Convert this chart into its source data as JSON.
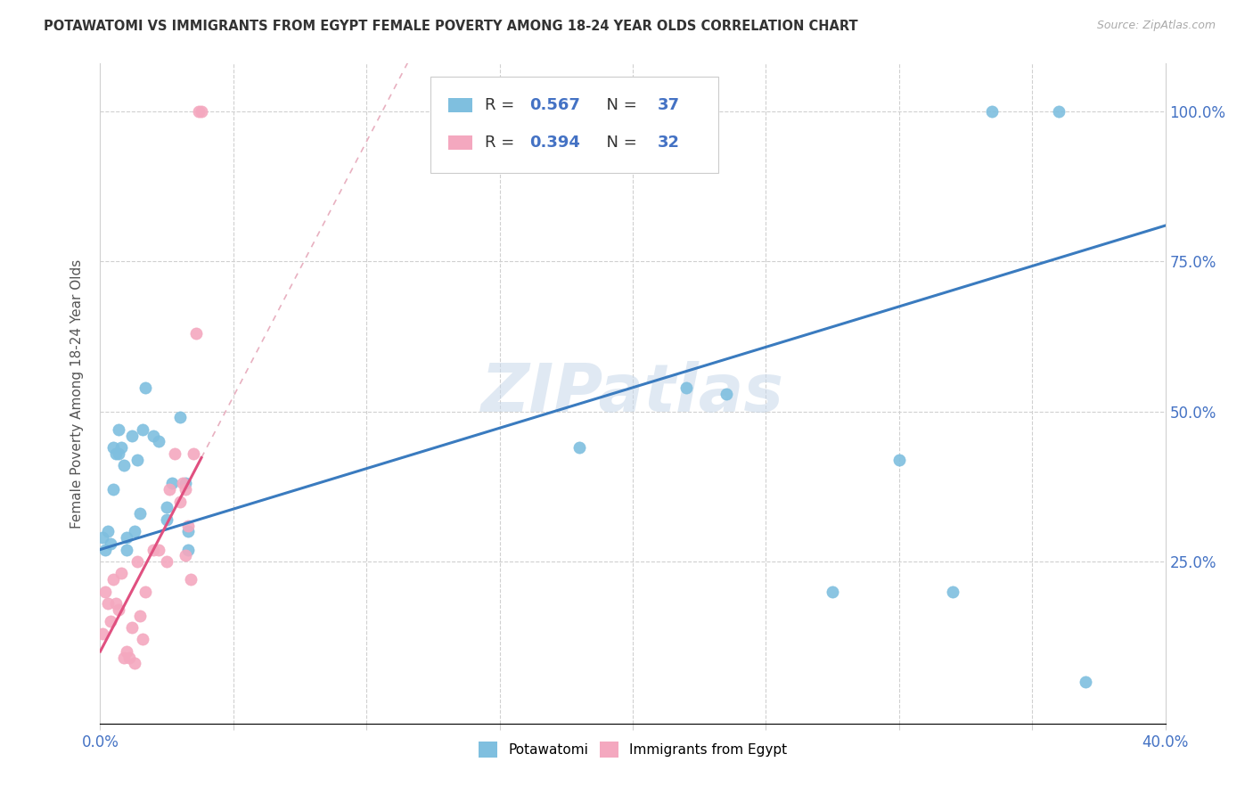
{
  "title": "POTAWATOMI VS IMMIGRANTS FROM EGYPT FEMALE POVERTY AMONG 18-24 YEAR OLDS CORRELATION CHART",
  "source": "Source: ZipAtlas.com",
  "ylabel": "Female Poverty Among 18-24 Year Olds",
  "r_blue": "0.567",
  "n_blue": "37",
  "r_pink": "0.394",
  "n_pink": "32",
  "legend_blue": "Potawatomi",
  "legend_pink": "Immigrants from Egypt",
  "watermark": "ZIPatlas",
  "blue_scatter_color": "#7fbfdf",
  "pink_scatter_color": "#f4a8bf",
  "blue_line_color": "#3a7bbf",
  "pink_line_color": "#e05080",
  "pink_dash_color": "#e8b0c0",
  "xlim": [
    0.0,
    0.4
  ],
  "ylim": [
    -0.02,
    1.08
  ],
  "potawatomi_x": [
    0.001,
    0.002,
    0.003,
    0.004,
    0.005,
    0.005,
    0.006,
    0.007,
    0.007,
    0.008,
    0.009,
    0.01,
    0.01,
    0.012,
    0.013,
    0.014,
    0.015,
    0.016,
    0.017,
    0.02,
    0.022,
    0.025,
    0.025,
    0.027,
    0.03,
    0.032,
    0.033,
    0.033,
    0.18,
    0.22,
    0.235,
    0.275,
    0.3,
    0.32,
    0.335,
    0.36,
    0.37
  ],
  "potawatomi_y": [
    0.29,
    0.27,
    0.3,
    0.28,
    0.37,
    0.44,
    0.43,
    0.47,
    0.43,
    0.44,
    0.41,
    0.27,
    0.29,
    0.46,
    0.3,
    0.42,
    0.33,
    0.47,
    0.54,
    0.46,
    0.45,
    0.34,
    0.32,
    0.38,
    0.49,
    0.38,
    0.3,
    0.27,
    0.44,
    0.54,
    0.53,
    0.2,
    0.42,
    0.2,
    1.0,
    1.0,
    0.05
  ],
  "egypt_x": [
    0.001,
    0.002,
    0.003,
    0.004,
    0.005,
    0.006,
    0.007,
    0.008,
    0.009,
    0.01,
    0.011,
    0.012,
    0.013,
    0.014,
    0.015,
    0.016,
    0.017,
    0.02,
    0.022,
    0.025,
    0.026,
    0.028,
    0.03,
    0.031,
    0.032,
    0.032,
    0.033,
    0.034,
    0.035,
    0.036,
    0.037,
    0.038
  ],
  "egypt_y": [
    0.13,
    0.2,
    0.18,
    0.15,
    0.22,
    0.18,
    0.17,
    0.23,
    0.09,
    0.1,
    0.09,
    0.14,
    0.08,
    0.25,
    0.16,
    0.12,
    0.2,
    0.27,
    0.27,
    0.25,
    0.37,
    0.43,
    0.35,
    0.38,
    0.37,
    0.26,
    0.31,
    0.22,
    0.43,
    0.63,
    1.0,
    1.0
  ]
}
